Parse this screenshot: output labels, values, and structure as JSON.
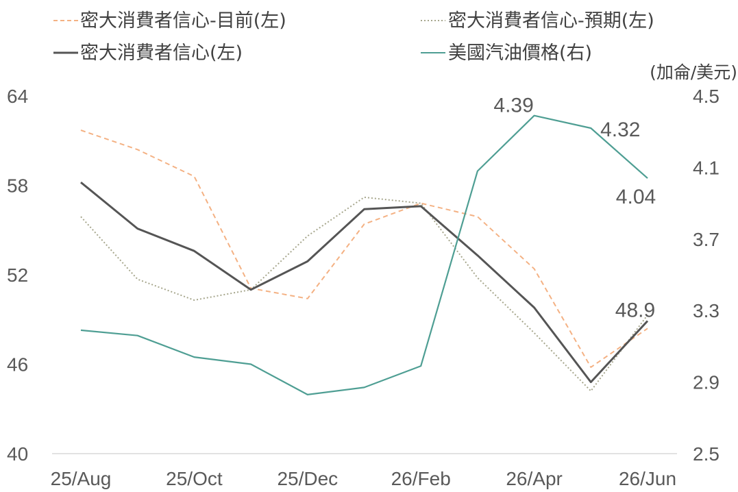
{
  "chart_data": {
    "type": "line",
    "x": [
      "25/Aug",
      "25/Sep",
      "25/Oct",
      "25/Nov",
      "25/Dec",
      "26/Jan",
      "26/Feb",
      "26/Mar",
      "26/Apr",
      "26/May",
      "26/Jun"
    ],
    "x_tick_labels": [
      "25/Aug",
      "25/Oct",
      "25/Dec",
      "26/Feb",
      "26/Apr",
      "26/Jun"
    ],
    "y_left": {
      "ylim": [
        40,
        64
      ],
      "ticks": [
        "64",
        "58",
        "52",
        "46",
        "40"
      ]
    },
    "y_right": {
      "ylim": [
        2.5,
        4.5
      ],
      "ticks": [
        "4.5",
        "4.1",
        "3.7",
        "3.3",
        "2.9",
        "2.5"
      ],
      "unit": "(加侖/美元)"
    },
    "series": [
      {
        "name": "密大消費者信心-目前(左)",
        "axis": "left",
        "style": "dashed",
        "color": "#F4B183",
        "values": [
          61.7,
          60.4,
          58.6,
          51.1,
          50.4,
          55.4,
          56.8,
          55.9,
          52.4,
          45.8,
          48.4
        ]
      },
      {
        "name": "密大消費者信心-預期(左)",
        "axis": "left",
        "style": "dotted",
        "color": "#A6A68C",
        "values": [
          55.9,
          51.7,
          50.3,
          51.0,
          54.6,
          57.2,
          56.8,
          51.8,
          48.1,
          44.2,
          49.3
        ]
      },
      {
        "name": "密大消費者信心(左)",
        "axis": "left",
        "style": "solid",
        "color": "#555555",
        "values": [
          58.2,
          55.1,
          53.6,
          51.0,
          52.9,
          56.4,
          56.6,
          53.3,
          49.8,
          44.8,
          48.9
        ]
      },
      {
        "name": "美國汽油價格(右)",
        "axis": "right",
        "style": "solid",
        "color": "#4E9E93",
        "values": [
          3.19,
          3.16,
          3.04,
          3.0,
          2.83,
          2.87,
          2.99,
          4.08,
          4.39,
          4.32,
          4.04
        ]
      }
    ],
    "annotations": [
      {
        "series": 3,
        "index": 8,
        "text": "4.39"
      },
      {
        "series": 3,
        "index": 9,
        "text": "4.32"
      },
      {
        "series": 3,
        "index": 10,
        "text": "4.04"
      },
      {
        "series": 2,
        "index": 10,
        "text": "48.9"
      }
    ],
    "legend": "top",
    "grid": false
  }
}
